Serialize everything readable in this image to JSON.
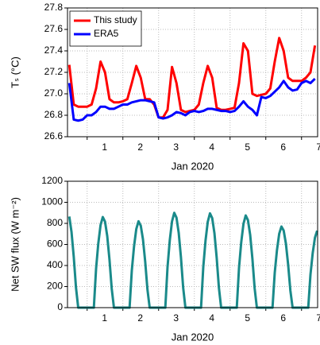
{
  "chart_data": [
    {
      "type": "line",
      "xlabel": "Jan 2020",
      "ylabel": "Tₛ (°C)",
      "xlim": [
        0.45,
        7.45
      ],
      "xticks": [
        1,
        2,
        3,
        4,
        5,
        6,
        7
      ],
      "ylim": [
        26.6,
        27.8
      ],
      "yticks": [
        26.6,
        26.8,
        {
          "value": 27,
          "label": "27.0"
        },
        27.2,
        27.4,
        27.6,
        27.8
      ],
      "grid": true,
      "legend": "upper left",
      "x": [
        0.5,
        0.625,
        0.75,
        0.875,
        1.0,
        1.125,
        1.25,
        1.375,
        1.5,
        1.625,
        1.75,
        1.875,
        2.0,
        2.125,
        2.25,
        2.375,
        2.5,
        2.625,
        2.75,
        2.875,
        3.0,
        3.125,
        3.25,
        3.375,
        3.5,
        3.625,
        3.75,
        3.875,
        4.0,
        4.125,
        4.25,
        4.375,
        4.5,
        4.625,
        4.75,
        4.875,
        5.0,
        5.125,
        5.25,
        5.375,
        5.5,
        5.625,
        5.75,
        5.875,
        6.0,
        6.125,
        6.25,
        6.375,
        6.5,
        6.625,
        6.75,
        6.875,
        7.0,
        7.125,
        7.25,
        7.375
      ],
      "series": [
        {
          "name": "This study",
          "color": "#ff0000",
          "values": [
            27.27,
            26.9,
            26.88,
            26.88,
            26.88,
            26.9,
            27.05,
            27.3,
            27.2,
            26.95,
            26.92,
            26.92,
            26.93,
            26.95,
            27.1,
            27.26,
            27.15,
            26.95,
            26.95,
            26.9,
            26.78,
            26.78,
            26.85,
            27.25,
            27.1,
            26.85,
            26.83,
            26.84,
            26.85,
            26.9,
            27.1,
            27.26,
            27.15,
            26.87,
            26.85,
            26.85,
            26.86,
            26.87,
            27.1,
            27.47,
            27.4,
            27.0,
            26.98,
            26.99,
            27.0,
            27.05,
            27.3,
            27.52,
            27.4,
            27.15,
            27.12,
            27.12,
            27.12,
            27.15,
            27.2,
            27.45
          ]
        },
        {
          "name": "ERA5",
          "color": "#0000ff",
          "values": [
            27.1,
            26.76,
            26.75,
            26.76,
            26.8,
            26.8,
            26.83,
            26.88,
            26.88,
            26.86,
            26.86,
            26.88,
            26.9,
            26.9,
            26.92,
            26.93,
            26.94,
            26.94,
            26.93,
            26.92,
            26.78,
            26.77,
            26.78,
            26.8,
            26.83,
            26.82,
            26.8,
            26.83,
            26.84,
            26.83,
            26.84,
            26.86,
            26.86,
            26.85,
            26.84,
            26.84,
            26.83,
            26.84,
            26.88,
            26.93,
            26.88,
            26.85,
            26.8,
            26.97,
            26.96,
            26.98,
            27.02,
            27.06,
            27.12,
            27.06,
            27.03,
            27.04,
            27.1,
            27.12,
            27.1,
            27.14
          ]
        }
      ]
    },
    {
      "type": "line",
      "xlabel": "Jan 2020",
      "ylabel": "Net SW flux (W m⁻²)",
      "xlim": [
        0.45,
        7.45
      ],
      "xticks": [
        1,
        2,
        3,
        4,
        5,
        6,
        7
      ],
      "ylim": [
        0,
        1200
      ],
      "yticks": [
        0,
        200,
        400,
        600,
        800,
        1000,
        1200
      ],
      "grid": true,
      "x": [
        0.5,
        0.5625,
        0.625,
        0.6875,
        0.75,
        0.8125,
        0.875,
        0.9375,
        1.0,
        1.0625,
        1.125,
        1.1875,
        1.25,
        1.3125,
        1.375,
        1.4375,
        1.5,
        1.5625,
        1.625,
        1.6875,
        1.75,
        1.8125,
        1.875,
        1.9375,
        2.0,
        2.0625,
        2.125,
        2.1875,
        2.25,
        2.3125,
        2.375,
        2.4375,
        2.5,
        2.5625,
        2.625,
        2.6875,
        2.75,
        2.8125,
        2.875,
        2.9375,
        3.0,
        3.0625,
        3.125,
        3.1875,
        3.25,
        3.3125,
        3.375,
        3.4375,
        3.5,
        3.5625,
        3.625,
        3.6875,
        3.75,
        3.8125,
        3.875,
        3.9375,
        4.0,
        4.0625,
        4.125,
        4.1875,
        4.25,
        4.3125,
        4.375,
        4.4375,
        4.5,
        4.5625,
        4.625,
        4.6875,
        4.75,
        4.8125,
        4.875,
        4.9375,
        5.0,
        5.0625,
        5.125,
        5.1875,
        5.25,
        5.3125,
        5.375,
        5.4375,
        5.5,
        5.5625,
        5.625,
        5.6875,
        5.75,
        5.8125,
        5.875,
        5.9375,
        6.0,
        6.0625,
        6.125,
        6.1875,
        6.25,
        6.3125,
        6.375,
        6.4375,
        6.5,
        6.5625,
        6.625,
        6.6875,
        6.75,
        6.8125,
        6.875,
        6.9375,
        7.0,
        7.0625,
        7.125,
        7.1875,
        7.25,
        7.3125,
        7.375,
        7.4375
      ],
      "series": [
        {
          "name": "Net SW flux",
          "color": "#1a8a8a",
          "values": [
            865,
            719,
            482,
            191,
            0,
            0,
            0,
            0,
            0,
            0,
            0,
            0,
            370,
            611,
            783,
            860,
            817,
            679,
            456,
            181,
            0,
            0,
            0,
            0,
            0,
            0,
            0,
            0,
            353,
            582,
            746,
            820,
            779,
            648,
            435,
            172,
            0,
            0,
            0,
            0,
            0,
            0,
            0,
            0,
            387,
            639,
            819,
            900,
            855,
            711,
            477,
            189,
            0,
            0,
            0,
            0,
            0,
            0,
            0,
            0,
            385,
            635,
            814,
            895,
            850,
            707,
            474,
            188,
            0,
            0,
            0,
            0,
            0,
            0,
            0,
            0,
            376,
            621,
            796,
            875,
            831,
            691,
            464,
            184,
            0,
            0,
            0,
            0,
            0,
            0,
            0,
            0,
            331,
            547,
            701,
            770,
            732,
            608,
            408,
            162,
            0,
            0,
            0,
            0,
            0,
            0,
            0,
            0,
            314,
            518,
            664,
            730
          ]
        }
      ]
    }
  ]
}
